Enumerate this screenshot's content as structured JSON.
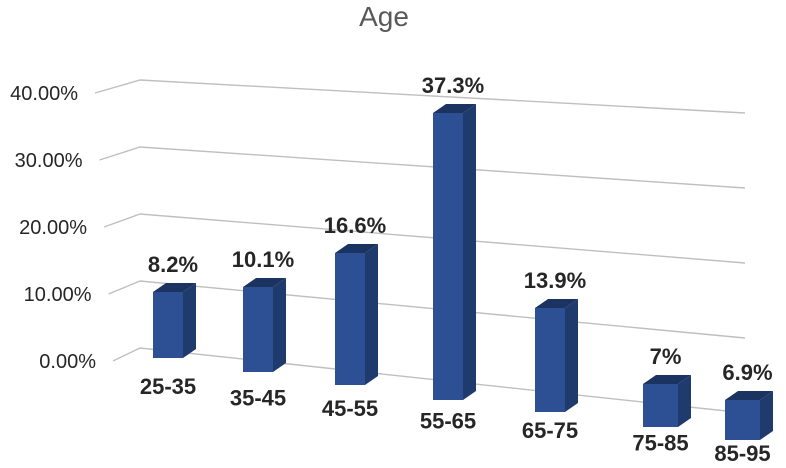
{
  "chart_data": {
    "type": "bar",
    "style": "3d-column",
    "title": "Age",
    "categories": [
      "25-35",
      "35-45",
      "45-55",
      "55-65",
      "65-75",
      "75-85",
      "85-95"
    ],
    "values": [
      8.2,
      10.1,
      16.6,
      37.3,
      13.9,
      7,
      6.9
    ],
    "data_labels": [
      "8.2%",
      "10.1%",
      "16.6%",
      "37.3%",
      "13.9%",
      "7%",
      "6.9%"
    ],
    "y_ticks": [
      "0.00%",
      "10.00%",
      "20.00%",
      "30.00%",
      "40.00%"
    ],
    "y_tick_values": [
      0,
      10,
      20,
      30,
      40
    ],
    "ylim": [
      0,
      40
    ],
    "xlabel": "",
    "ylabel": "",
    "legend": "none",
    "grid": true
  },
  "colors": {
    "bar_front": "#2D5094",
    "bar_side": "#1F3B6D",
    "bar_top": "#1A3360",
    "gridline": "#BFBFBF",
    "title": "#595959",
    "text": "#262626"
  }
}
